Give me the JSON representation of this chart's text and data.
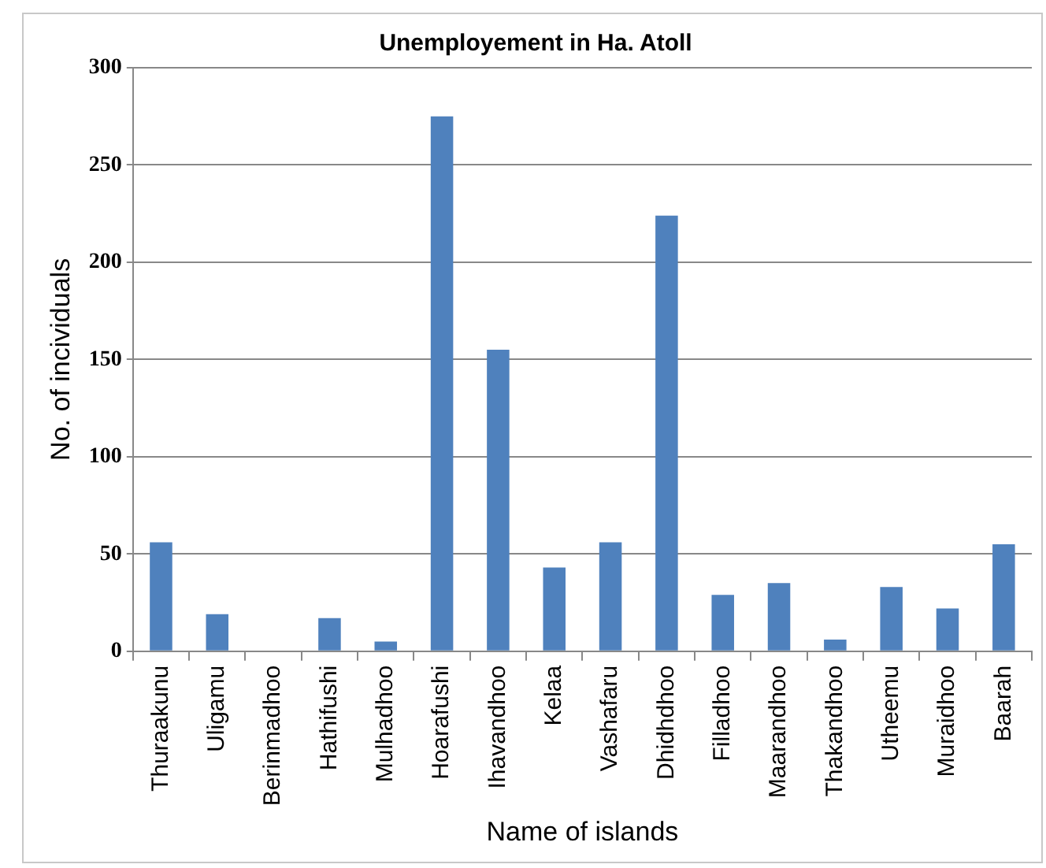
{
  "chart_data": {
    "type": "bar",
    "title": "Unemployement in Ha. Atoll",
    "xlabel": "Name of islands",
    "ylabel": "No. of incividuals",
    "categories": [
      "Thuraakunu",
      "Uligamu",
      "Berinmadhoo",
      "Hathifushi",
      "Mulhadhoo",
      "Hoarafushi",
      "Ihavandhoo",
      "Kelaa",
      "Vashafaru",
      "Dhidhdhoo",
      "Filladhoo",
      "Maarandhoo",
      "Thakandhoo",
      "Utheemu",
      "Muraidhoo",
      "Baarah"
    ],
    "values": [
      56,
      19,
      0,
      17,
      5,
      275,
      155,
      43,
      56,
      224,
      29,
      35,
      6,
      33,
      22,
      55
    ],
    "color": "#4f81bd",
    "ylim": [
      0,
      300
    ],
    "yticks": [
      0,
      50,
      100,
      150,
      200,
      250,
      300
    ],
    "grid": "y"
  }
}
